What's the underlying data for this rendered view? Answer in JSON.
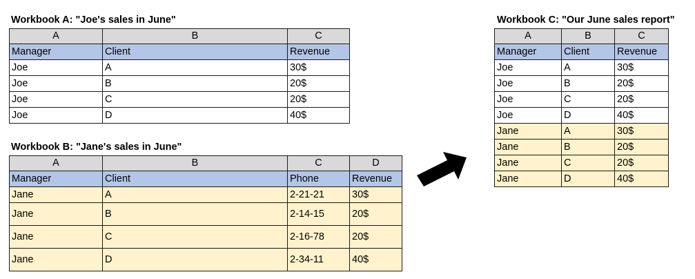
{
  "workbook_a": {
    "title": "Workbook A: \"Joe's sales in June\"",
    "columns": [
      "A",
      "B",
      "C"
    ],
    "headers": [
      "Manager",
      "Client",
      "Revenue"
    ],
    "rows": [
      [
        "Joe",
        "A",
        "30$"
      ],
      [
        "Joe",
        "B",
        "20$"
      ],
      [
        "Joe",
        "C",
        "20$"
      ],
      [
        "Joe",
        "D",
        "40$"
      ]
    ]
  },
  "workbook_b": {
    "title": "Workbook B: \"Jane's sales in June\"",
    "columns": [
      "A",
      "B",
      "C",
      "D"
    ],
    "headers": [
      "Manager",
      "Client",
      "Phone",
      "Revenue"
    ],
    "rows": [
      [
        "Jane",
        "A",
        "2-21-21",
        "30$"
      ],
      [
        "Jane",
        "B",
        "2-14-15",
        "20$"
      ],
      [
        "Jane",
        "C",
        "2-16-78",
        "20$"
      ],
      [
        "Jane",
        "D",
        "2-34-11",
        "40$"
      ]
    ]
  },
  "workbook_c": {
    "title": "Workbook C: \"Our June sales report\"",
    "columns": [
      "A",
      "B",
      "C"
    ],
    "headers": [
      "Manager",
      "Client",
      "Revenue"
    ],
    "rows": [
      [
        "Joe",
        "A",
        "30$"
      ],
      [
        "Joe",
        "B",
        "20$"
      ],
      [
        "Joe",
        "C",
        "20$"
      ],
      [
        "Joe",
        "D",
        "40$"
      ],
      [
        "Jane",
        "A",
        "30$"
      ],
      [
        "Jane",
        "B",
        "20$"
      ],
      [
        "Jane",
        "C",
        "20$"
      ],
      [
        "Jane",
        "D",
        "40$"
      ]
    ]
  },
  "colors": {
    "column_header_bg": "#d9d9d9",
    "field_header_bg": "#b4c6e7",
    "jane_row_bg": "#fff2cc",
    "arrow": "#000000"
  },
  "icons": {
    "merge_arrow": "arrow-icon"
  }
}
